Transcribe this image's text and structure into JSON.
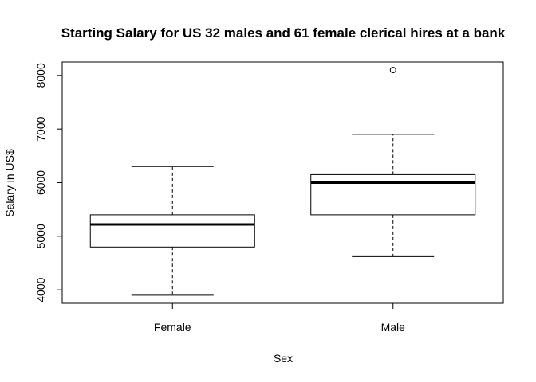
{
  "chart_data": {
    "type": "boxplot",
    "title": "Starting Salary for US 32 males and 61 female clerical hires at a bank",
    "xlabel": "Sex",
    "ylabel": "Salary in US$",
    "categories": [
      "Female",
      "Male"
    ],
    "y_ticks": [
      "4000",
      "5000",
      "6000",
      "7000",
      "8000"
    ],
    "ylim": [
      3750,
      8250
    ],
    "grid": false,
    "boxes": [
      {
        "category": "Female",
        "whisker_low": 3900,
        "q1": 4800,
        "median": 5220,
        "q3": 5400,
        "whisker_high": 6300,
        "outliers": []
      },
      {
        "category": "Male",
        "whisker_low": 4620,
        "q1": 5400,
        "median": 6000,
        "q3": 6150,
        "whisker_high": 6900,
        "outliers": [
          8100
        ]
      }
    ]
  }
}
